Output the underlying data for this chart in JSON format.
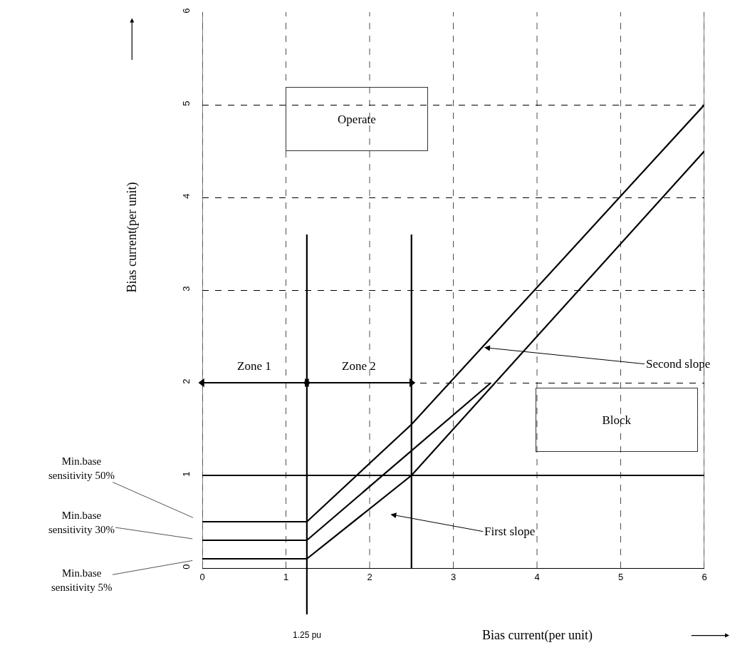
{
  "chart_data": {
    "type": "line",
    "xlabel": "Bias current(per unit)",
    "ylabel": "Bias current(per unit)",
    "xlim": [
      0,
      6
    ],
    "ylim": [
      -0.5,
      6
    ],
    "xticks": [
      0,
      1,
      2,
      3,
      4,
      5,
      6
    ],
    "yticks": [
      0,
      1,
      2,
      3,
      4,
      5,
      6
    ],
    "grid": true,
    "line_style": "solid",
    "series": [
      {
        "color": "#000000",
        "x": [
          0,
          1.25,
          2.5,
          6
        ],
        "values": [
          0.5,
          0.5,
          1.55,
          5
        ]
      },
      {
        "color": "#000000",
        "x": [
          0,
          1.25,
          3.45
        ],
        "values": [
          0.3,
          0.3,
          2.0
        ]
      },
      {
        "color": "#000000",
        "x": [
          0,
          1.25,
          2.5,
          6
        ],
        "values": [
          0.1,
          0.1,
          1.0,
          4.5
        ]
      },
      {
        "color": "#000000",
        "x": [
          1.25,
          1.25
        ],
        "values": [
          -0.5,
          3.6
        ]
      },
      {
        "color": "#000000",
        "x": [
          2.5,
          2.5
        ],
        "values": [
          0,
          3.6
        ]
      },
      {
        "color": "#000000",
        "x": [
          0,
          1.25
        ],
        "values": [
          2,
          2
        ],
        "marker": "triangle"
      },
      {
        "color": "#000000",
        "x": [
          1.25,
          2.5
        ],
        "values": [
          2,
          2
        ],
        "marker": "triangle"
      }
    ],
    "ref_lines": [
      {
        "axis": "y",
        "value": 1,
        "color": "#000000"
      }
    ],
    "annotations": [
      "Operate",
      "Block",
      {
        "text": "Zone 1",
        "x": 0.625,
        "y": 2
      },
      {
        "text": "Zone 2",
        "x": 1.875,
        "y": 2
      },
      "First slope",
      {
        "text": "Second slope",
        "x": 3.37,
        "y": 2.38
      },
      {
        "text": "1.25 pu",
        "x": 1.25,
        "y": -0.5
      },
      {
        "text": "Min.base\nsensitivity 50%",
        "x": 0,
        "y": 0.5
      },
      {
        "text": "Min.base\nsensitivity 30%",
        "x": 0,
        "y": 0.3
      },
      {
        "text": "Min.base\nsensitivity 5%",
        "x": 0,
        "y": 0.1
      }
    ]
  }
}
